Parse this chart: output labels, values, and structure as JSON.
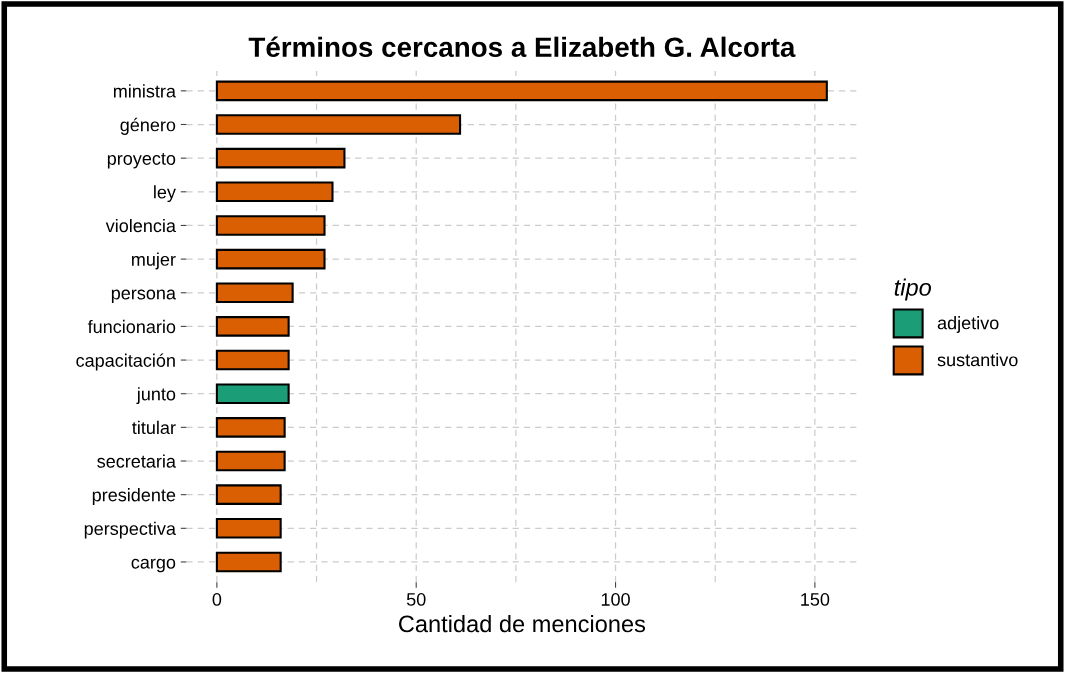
{
  "chart_data": {
    "type": "bar",
    "orientation": "horizontal",
    "title": "Términos cercanos a Elizabeth G. Alcorta",
    "xlabel": "Cantidad de menciones",
    "legend_title": "tipo",
    "categories": [
      "ministra",
      "género",
      "proyecto",
      "ley",
      "violencia",
      "mujer",
      "persona",
      "funcionario",
      "capacitación",
      "junto",
      "titular",
      "secretaria",
      "presidente",
      "perspectiva",
      "cargo"
    ],
    "series": [
      {
        "name": "adjetivo",
        "color": "#1b9e77",
        "values": [
          null,
          null,
          null,
          null,
          null,
          null,
          null,
          null,
          null,
          18,
          null,
          null,
          null,
          null,
          null
        ]
      },
      {
        "name": "sustantivo",
        "color": "#d95f02",
        "values": [
          153,
          61,
          32,
          29,
          27,
          27,
          19,
          18,
          18,
          null,
          17,
          17,
          16,
          16,
          16
        ]
      }
    ],
    "xlim": [
      -7.65,
      160.65
    ],
    "xticks": [
      0,
      {
        "value": 25,
        "label": null
      },
      50,
      {
        "value": 75,
        "label": null
      },
      100,
      {
        "value": 125,
        "label": null
      },
      150
    ],
    "grid": true,
    "legend": "right"
  }
}
